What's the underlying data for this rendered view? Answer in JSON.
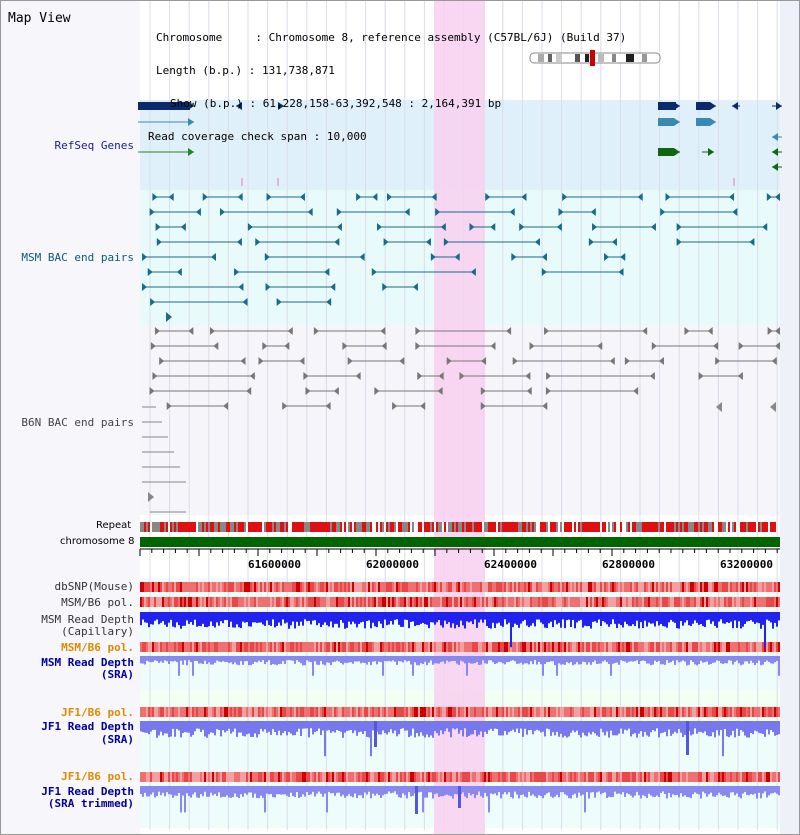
{
  "title": "Map View",
  "info": {
    "chromosome_key": "Chromosome",
    "chromosome_value": "Chromosome 8, reference assembly (C57BL/6J) (Build 37)",
    "length_key": "Length (b.p.)",
    "length_value": "131,738,871",
    "show_key": "Show (b.p.)",
    "show_value": "61,228,158-63,392,548 : 2,164,391 bp",
    "coverage_key": "Read coverage check span",
    "coverage_value": "10,000"
  },
  "tracks": {
    "refseq": "RefSeq Genes",
    "msm_bac": "MSM BAC end pairs",
    "b6n_bac": "B6N BAC end pairs",
    "repeat": "Repeat",
    "chromosome": "chromosome 8",
    "dbsnp": "dbSNP(Mouse)",
    "msm_b6_pol_1": "MSM/B6 pol.",
    "msm_depth_cap_1": "MSM Read Depth",
    "msm_depth_cap_2": "(Capillary)",
    "msm_b6_pol_2": "MSM/B6 pol.",
    "msm_depth_sra_1": "MSM Read Depth",
    "msm_depth_sra_2": "(SRA)",
    "jf1_b6_pol_1": "JF1/B6 pol.",
    "jf1_depth_sra_1": "JF1 Read Depth",
    "jf1_depth_sra_2": "(SRA)",
    "jf1_b6_pol_2": "JF1/B6 pol.",
    "jf1_depth_trim_1": "JF1 Read Depth",
    "jf1_depth_trim_2": "(SRA trimmed)"
  },
  "axis": {
    "ticks": [
      "61600000",
      "62000000",
      "62400000",
      "62800000",
      "63200000"
    ]
  },
  "colors": {
    "refseq_label": "#1a1a9a",
    "msm_bac_label": "#0a5a7a",
    "b6n_bac_label": "#444444",
    "msm_pol_label": "#e08a00",
    "jf1_pol_label": "#e08a00",
    "depth_label": "#00009a",
    "highlight": "#f8d0f0",
    "chromosome_bar": "#006400",
    "refseq_bg": "#dff0fa",
    "msm_bac_bg": "#e8fafa"
  }
}
